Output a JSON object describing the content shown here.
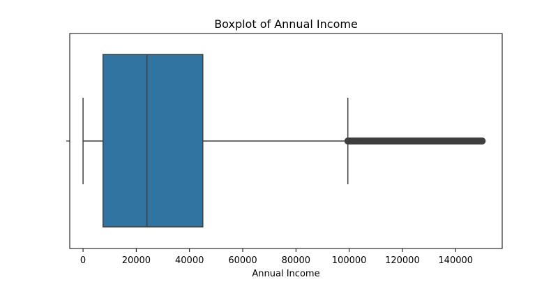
{
  "chart_data": {
    "type": "boxplot",
    "title": "Boxplot of Annual Income",
    "xlabel": "Annual Income",
    "ylabel": "",
    "xlim": [
      -5000,
      157500
    ],
    "xticks": [
      0,
      20000,
      40000,
      60000,
      80000,
      100000,
      120000,
      140000
    ],
    "xtick_labels": [
      "0",
      "20000",
      "40000",
      "60000",
      "80000",
      "100000",
      "120000",
      "140000"
    ],
    "grid": false,
    "box": {
      "whisker_low": 0,
      "q1": 7500,
      "median": 24000,
      "q3": 45000,
      "whisker_high": 99500
    },
    "outliers_range": [
      99500,
      150000
    ],
    "colors": {
      "box_fill": "#3274a1",
      "line": "#3f3f3f",
      "outlier": "#3f3f3f",
      "axis": "#000000"
    }
  }
}
